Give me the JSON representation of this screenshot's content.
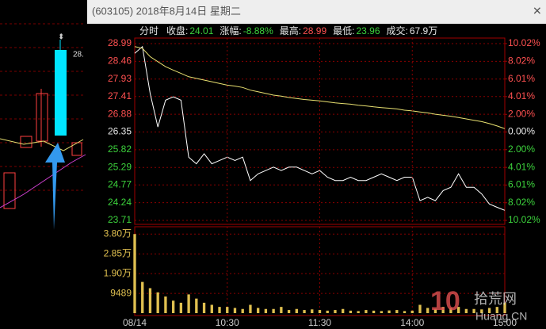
{
  "window": {
    "title": "(603105) 2018年8月14日 星期二"
  },
  "info": {
    "mode": "分时",
    "items": [
      {
        "label": "收盘:",
        "value": "24.01"
      },
      {
        "label": "涨幅:",
        "value": "-8.88%"
      },
      {
        "label": "最高:",
        "value": "28.99"
      },
      {
        "label": "最低:",
        "value": "23.96"
      },
      {
        "label": "成交:",
        "value": "67.9万"
      }
    ]
  },
  "side": {
    "label": "28."
  },
  "watermark": {
    "logo": "10",
    "name": "拾荒网",
    "site": "Huang.CN"
  },
  "chart_data": [
    {
      "type": "line",
      "x": [
        0,
        5,
        10,
        15,
        20,
        25,
        30,
        35,
        40,
        45,
        50,
        55,
        60,
        65,
        70,
        75,
        80,
        85,
        90,
        95,
        100,
        105,
        110,
        115,
        120,
        125,
        130,
        135,
        140,
        145,
        150,
        155,
        160,
        165,
        170,
        175,
        180,
        185,
        190,
        195,
        200,
        205,
        210,
        215,
        220,
        225,
        230,
        235,
        240
      ],
      "xlim": [
        0,
        240
      ],
      "ylim": [
        23.71,
        28.99
      ],
      "yticks": [
        28.99,
        28.46,
        27.93,
        27.41,
        26.88,
        26.35,
        25.82,
        25.29,
        24.77,
        24.24,
        23.71
      ],
      "y2lim": [
        -10.02,
        10.02
      ],
      "y2ticks": [
        {
          "value": 10.02,
          "label": "10.02%"
        },
        {
          "value": 8.02,
          "label": "8.02%"
        },
        {
          "value": 6.01,
          "label": "6.01%"
        },
        {
          "value": 4.01,
          "label": "4.01%"
        },
        {
          "value": 2.0,
          "label": "2.00%"
        },
        {
          "value": 0,
          "label": "0.00%"
        },
        {
          "value": -2.0,
          "label": "2.00%"
        },
        {
          "value": -4.01,
          "label": "4.01%"
        },
        {
          "value": -6.01,
          "label": "6.01%"
        },
        {
          "value": -8.02,
          "label": "8.02%"
        },
        {
          "value": -10.02,
          "label": "10.02%"
        }
      ],
      "grid": true,
      "up_color": "#ff5050",
      "down_color": "#3cd23c",
      "flat_color": "#e6e6e6",
      "series": [
        {
          "color": "#ffffff",
          "values": [
            28.7,
            28.9,
            27.5,
            26.5,
            27.3,
            27.4,
            27.3,
            25.6,
            25.4,
            25.7,
            25.4,
            25.5,
            25.6,
            25.5,
            25.6,
            24.9,
            25.1,
            25.2,
            25.3,
            25.2,
            25.3,
            25.3,
            25.2,
            25.1,
            25.2,
            25.0,
            24.9,
            24.9,
            25.0,
            24.9,
            24.9,
            25.0,
            25.1,
            25.0,
            24.9,
            25.0,
            25.0,
            24.3,
            24.4,
            24.3,
            24.6,
            24.7,
            25.1,
            24.7,
            24.7,
            24.5,
            24.2,
            24.1,
            24.01
          ]
        },
        {
          "color": "#e8e070",
          "values": [
            28.9,
            28.85,
            28.6,
            28.45,
            28.3,
            28.2,
            28.1,
            28.0,
            27.95,
            27.9,
            27.85,
            27.8,
            27.75,
            27.72,
            27.68,
            27.6,
            27.55,
            27.5,
            27.45,
            27.42,
            27.38,
            27.35,
            27.32,
            27.3,
            27.28,
            27.25,
            27.22,
            27.2,
            27.18,
            27.15,
            27.13,
            27.1,
            27.08,
            27.06,
            27.04,
            27.0,
            26.98,
            26.95,
            26.92,
            26.88,
            26.85,
            26.82,
            26.78,
            26.74,
            26.7,
            26.66,
            26.6,
            26.53,
            26.45
          ]
        }
      ]
    },
    {
      "type": "bar",
      "x": [
        0,
        5,
        10,
        15,
        20,
        25,
        30,
        35,
        40,
        45,
        50,
        55,
        60,
        65,
        70,
        75,
        80,
        85,
        90,
        95,
        100,
        105,
        110,
        115,
        120,
        125,
        130,
        135,
        140,
        145,
        150,
        155,
        160,
        165,
        170,
        175,
        180,
        185,
        190,
        195,
        200,
        205,
        210,
        215,
        220,
        225,
        230,
        235,
        240
      ],
      "xlim": [
        0,
        240
      ],
      "xticks": [
        {
          "value": 0,
          "label": "08/14"
        },
        {
          "value": 60,
          "label": "10:30"
        },
        {
          "value": 120,
          "label": "11:30"
        },
        {
          "value": 180,
          "label": "14:00"
        },
        {
          "value": 240,
          "label": "15:00"
        }
      ],
      "ylim": [
        0,
        40000
      ],
      "yticks": [
        {
          "value": 38000,
          "label": "3.80万"
        },
        {
          "value": 28500,
          "label": "2.85万"
        },
        {
          "value": 19000,
          "label": "1.90万"
        },
        9489
      ],
      "grid": true,
      "color": "#e0c050",
      "values": [
        38000,
        15000,
        12000,
        10000,
        8000,
        6000,
        5000,
        9000,
        7000,
        5000,
        4000,
        3000,
        3000,
        2500,
        2000,
        4000,
        2500,
        2000,
        2000,
        3000,
        1500,
        2000,
        1500,
        1800,
        1500,
        1200,
        1500,
        2000,
        1200,
        1000,
        1500,
        1200,
        1000,
        1300,
        1500,
        1000,
        1200,
        4000,
        2500,
        2000,
        3000,
        2500,
        3000,
        2000,
        2000,
        1800,
        2500,
        3000,
        5000
      ]
    }
  ]
}
